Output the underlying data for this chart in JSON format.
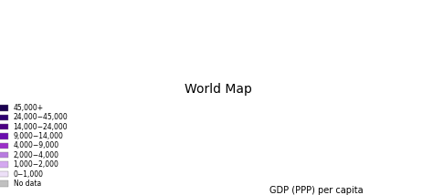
{
  "title": "",
  "subtitle": "GDP (PPP) per capita",
  "legend_labels": [
    "45,000+",
    "24,000−45,000",
    "14,000−24,000",
    "9,000−14,000",
    "4,000−9,000",
    "2,000−4,000",
    "1,000−2,000",
    "0−1,000",
    "No data"
  ],
  "legend_colors": [
    "#1a0050",
    "#2d0070",
    "#4b0082",
    "#6a0dad",
    "#9b30c8",
    "#b87ce0",
    "#d4a8f0",
    "#ede0f8",
    "#c0c0c0"
  ],
  "background_color": "#ffffff",
  "map_bg": "#ffffff",
  "ocean_color": "#ffffff",
  "figsize": [
    4.74,
    2.14
  ],
  "dpi": 100
}
